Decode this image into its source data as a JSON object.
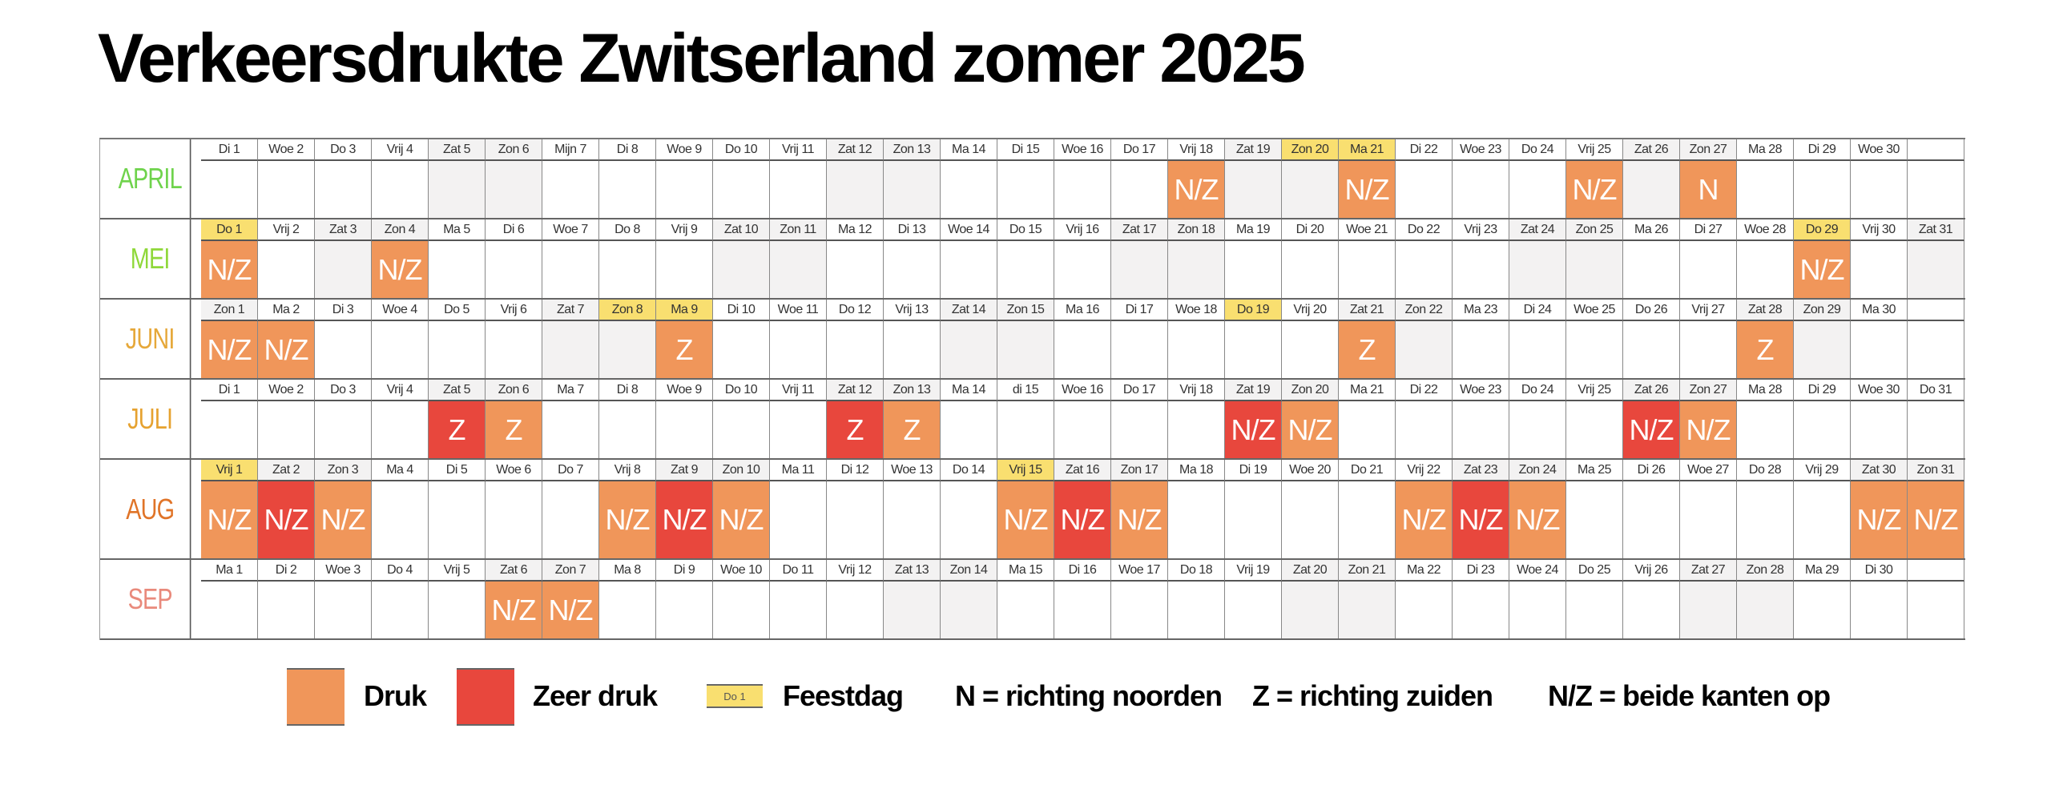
{
  "title": "Verkeersdrukte Zwitserland zomer 2025",
  "colors": {
    "druk": "#f0965a",
    "zeer_druk": "#e8473d",
    "feestdag": "#f9df70",
    "weekend": "#f3f2f2"
  },
  "months": [
    {
      "name": "APRIL",
      "color": "#6fd34c",
      "days": [
        "Di 1",
        "Woe 2",
        "Do 3",
        "Vrij 4",
        "Zat 5",
        "Zon 6",
        "Mijn 7",
        "Di 8",
        "Woe 9",
        "Do 10",
        "Vrij 11",
        "Zat 12",
        "Zon 13",
        "Ma 14",
        "Di 15",
        "Woe 16",
        "Do 17",
        "Vrij 18",
        "Zat 19",
        "Zon 20",
        "Ma 21",
        "Di 22",
        "Woe 23",
        "Do 24",
        "Vrij 25",
        "Zat 26",
        "Zon 27",
        "Ma 28",
        "Di 29",
        "Woe 30"
      ],
      "weekend": [
        5,
        6,
        12,
        13,
        19,
        20,
        26,
        27
      ],
      "holidays": [
        20,
        21
      ],
      "traffic": [
        {
          "day": 18,
          "level": "druk",
          "dir": "N/Z"
        },
        {
          "day": 21,
          "level": "druk",
          "dir": "N/Z"
        },
        {
          "day": 25,
          "level": "druk",
          "dir": "N/Z"
        },
        {
          "day": 27,
          "level": "druk",
          "dir": "N"
        }
      ]
    },
    {
      "name": "MEI",
      "color": "#8fd83a",
      "days": [
        "Do 1",
        "Vrij 2",
        "Zat 3",
        "Zon 4",
        "Ma 5",
        "Di 6",
        "Woe 7",
        "Do 8",
        "Vrij 9",
        "Zat 10",
        "Zon 11",
        "Ma 12",
        "Di 13",
        "Woe 14",
        "Do 15",
        "Vrij 16",
        "Zat 17",
        "Zon 18",
        "Ma 19",
        "Di 20",
        "Woe 21",
        "Do 22",
        "Vrij 23",
        "Zat 24",
        "Zon 25",
        "Ma 26",
        "Di 27",
        "Woe 28",
        "Do 29",
        "Vrij 30",
        "Zat 31"
      ],
      "weekend": [
        3,
        4,
        10,
        11,
        17,
        18,
        24,
        25,
        31
      ],
      "holidays": [
        1,
        29
      ],
      "traffic": [
        {
          "day": 1,
          "level": "druk",
          "dir": "N/Z"
        },
        {
          "day": 4,
          "level": "druk",
          "dir": "N/Z"
        },
        {
          "day": 29,
          "level": "druk",
          "dir": "N/Z"
        }
      ]
    },
    {
      "name": "JUNI",
      "color": "#e6a83a",
      "days": [
        "Zon 1",
        "Ma 2",
        "Di 3",
        "Woe 4",
        "Do 5",
        "Vrij 6",
        "Zat 7",
        "Zon 8",
        "Ma 9",
        "Di 10",
        "Woe 11",
        "Do 12",
        "Vrij 13",
        "Zat 14",
        "Zon 15",
        "Ma 16",
        "Di 17",
        "Woe 18",
        "Do 19",
        "Vrij 20",
        "Zat 21",
        "Zon 22",
        "Ma 23",
        "Di 24",
        "Woe 25",
        "Do 26",
        "Vrij 27",
        "Zat 28",
        "Zon 29",
        "Ma 30"
      ],
      "weekend": [
        1,
        7,
        8,
        14,
        15,
        21,
        22,
        28,
        29
      ],
      "holidays": [
        8,
        9,
        19
      ],
      "traffic": [
        {
          "day": 1,
          "level": "druk",
          "dir": "N/Z"
        },
        {
          "day": 2,
          "level": "druk",
          "dir": "N/Z"
        },
        {
          "day": 9,
          "level": "druk",
          "dir": "Z"
        },
        {
          "day": 21,
          "level": "druk",
          "dir": "Z"
        },
        {
          "day": 28,
          "level": "druk",
          "dir": "Z"
        }
      ]
    },
    {
      "name": "JULI",
      "color": "#e6a230",
      "days": [
        "Di 1",
        "Woe 2",
        "Do 3",
        "Vrij 4",
        "Zat 5",
        "Zon 6",
        "Ma 7",
        "Di 8",
        "Woe 9",
        "Do 10",
        "Vrij 11",
        "Zat 12",
        "Zon 13",
        "Ma 14",
        "di 15",
        "Woe 16",
        "Do 17",
        "Vrij 18",
        "Zat 19",
        "Zon 20",
        "Ma 21",
        "Di 22",
        "Woe 23",
        "Do 24",
        "Vrij 25",
        "Zat 26",
        "Zon 27",
        "Ma 28",
        "Di 29",
        "Woe 30",
        "Do 31"
      ],
      "weekend": [
        5,
        6,
        12,
        13,
        19,
        20,
        26,
        27
      ],
      "holidays": [],
      "traffic": [
        {
          "day": 5,
          "level": "zeer",
          "dir": "Z"
        },
        {
          "day": 6,
          "level": "druk",
          "dir": "Z"
        },
        {
          "day": 12,
          "level": "zeer",
          "dir": "Z"
        },
        {
          "day": 13,
          "level": "druk",
          "dir": "Z"
        },
        {
          "day": 19,
          "level": "zeer",
          "dir": "N/Z"
        },
        {
          "day": 20,
          "level": "druk",
          "dir": "N/Z"
        },
        {
          "day": 26,
          "level": "zeer",
          "dir": "N/Z"
        },
        {
          "day": 27,
          "level": "druk",
          "dir": "N/Z"
        }
      ]
    },
    {
      "name": "AUG",
      "color": "#e07428",
      "tall": true,
      "days": [
        "Vrij 1",
        "Zat 2",
        "Zon 3",
        "Ma 4",
        "Di 5",
        "Woe 6",
        "Do 7",
        "Vrij 8",
        "Zat 9",
        "Zon 10",
        "Ma 11",
        "Di 12",
        "Woe 13",
        "Do 14",
        "Vrij 15",
        "Zat 16",
        "Zon 17",
        "Ma 18",
        "Di 19",
        "Woe 20",
        "Do 21",
        "Vrij 22",
        "Zat 23",
        "Zon 24",
        "Ma 25",
        "Di 26",
        "Woe 27",
        "Do 28",
        "Vrij 29",
        "Zat 30",
        "Zon 31"
      ],
      "weekend": [
        2,
        3,
        9,
        10,
        16,
        17,
        23,
        24,
        30,
        31
      ],
      "holidays": [
        1,
        15
      ],
      "traffic": [
        {
          "day": 1,
          "level": "druk",
          "dir": "N/Z"
        },
        {
          "day": 2,
          "level": "zeer",
          "dir": "N/Z"
        },
        {
          "day": 3,
          "level": "druk",
          "dir": "N/Z"
        },
        {
          "day": 8,
          "level": "druk",
          "dir": "N/Z"
        },
        {
          "day": 9,
          "level": "zeer",
          "dir": "N/Z"
        },
        {
          "day": 10,
          "level": "druk",
          "dir": "N/Z"
        },
        {
          "day": 15,
          "level": "druk",
          "dir": "N/Z"
        },
        {
          "day": 16,
          "level": "zeer",
          "dir": "N/Z"
        },
        {
          "day": 17,
          "level": "druk",
          "dir": "N/Z"
        },
        {
          "day": 22,
          "level": "druk",
          "dir": "N/Z"
        },
        {
          "day": 23,
          "level": "zeer",
          "dir": "N/Z"
        },
        {
          "day": 24,
          "level": "druk",
          "dir": "N/Z"
        },
        {
          "day": 30,
          "level": "druk",
          "dir": "N/Z"
        },
        {
          "day": 31,
          "level": "druk",
          "dir": "N/Z"
        }
      ]
    },
    {
      "name": "SEP",
      "color": "#e98a7c",
      "days": [
        "Ma 1",
        "Di 2",
        "Woe 3",
        "Do 4",
        "Vrij 5",
        "Zat 6",
        "Zon 7",
        "Ma 8",
        "Di 9",
        "Woe 10",
        "Do 11",
        "Vrij 12",
        "Zat 13",
        "Zon 14",
        "Ma 15",
        "Di 16",
        "Woe 17",
        "Do 18",
        "Vrij 19",
        "Zat 20",
        "Zon 21",
        "Ma 22",
        "Di 23",
        "Woe 24",
        "Do 25",
        "Vrij 26",
        "Zat 27",
        "Zon 28",
        "Ma 29",
        "Di 30"
      ],
      "weekend": [
        6,
        7,
        13,
        14,
        20,
        21,
        27,
        28
      ],
      "holidays": [],
      "traffic": [
        {
          "day": 6,
          "level": "druk",
          "dir": "N/Z"
        },
        {
          "day": 7,
          "level": "druk",
          "dir": "N/Z"
        }
      ]
    }
  ],
  "legend": {
    "druk": "Druk",
    "zeer_druk": "Zeer druk",
    "feestdag_sample": "Do 1",
    "feestdag": "Feestdag",
    "n": "N = richting noorden",
    "z": "Z = richting zuiden",
    "nz": "N/Z = beide kanten op"
  }
}
